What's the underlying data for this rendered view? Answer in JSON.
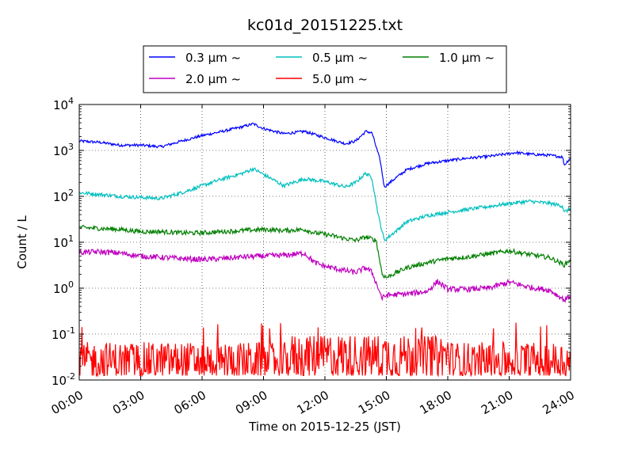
{
  "chart_data": {
    "type": "line",
    "title": "kc01d_20151225.txt",
    "xlabel": "Time on 2015-12-25 (JST)",
    "ylabel": "Count / L",
    "x_range_hours": [
      0,
      24
    ],
    "xticks": [
      {
        "hour": 0,
        "label": "00:00"
      },
      {
        "hour": 3,
        "label": "03:00"
      },
      {
        "hour": 6,
        "label": "06:00"
      },
      {
        "hour": 9,
        "label": "09:00"
      },
      {
        "hour": 12,
        "label": "12:00"
      },
      {
        "hour": 15,
        "label": "15:00"
      },
      {
        "hour": 18,
        "label": "18:00"
      },
      {
        "hour": 21,
        "label": "21:00"
      },
      {
        "hour": 24,
        "label": "24:00"
      }
    ],
    "yscale": "log",
    "ylim": [
      0.01,
      10000
    ],
    "yticks": [
      {
        "value": 0.01,
        "base": "10",
        "exp": "-2"
      },
      {
        "value": 0.1,
        "base": "10",
        "exp": "-1"
      },
      {
        "value": 1,
        "base": "10",
        "exp": "0"
      },
      {
        "value": 10,
        "base": "10",
        "exp": "1"
      },
      {
        "value": 100,
        "base": "10",
        "exp": "2"
      },
      {
        "value": 1000,
        "base": "10",
        "exp": "3"
      },
      {
        "value": 10000,
        "base": "10",
        "exp": "4"
      }
    ],
    "grid": true,
    "legend_position": "top-center, above plot",
    "series": [
      {
        "name": "0.3 μm ~",
        "color": "#0000ff",
        "noise": 0.03,
        "points": [
          [
            0,
            1600
          ],
          [
            1,
            1500
          ],
          [
            2,
            1300
          ],
          [
            3,
            1300
          ],
          [
            4,
            1200
          ],
          [
            5,
            1600
          ],
          [
            6,
            2100
          ],
          [
            7,
            2600
          ],
          [
            8,
            3300
          ],
          [
            8.5,
            3800
          ],
          [
            9,
            3000
          ],
          [
            10,
            2300
          ],
          [
            11,
            2600
          ],
          [
            12,
            1900
          ],
          [
            13,
            1400
          ],
          [
            13.5,
            1600
          ],
          [
            14,
            2600
          ],
          [
            14.3,
            2400
          ],
          [
            14.7,
            600
          ],
          [
            14.9,
            160
          ],
          [
            15.5,
            260
          ],
          [
            16,
            380
          ],
          [
            17,
            520
          ],
          [
            18,
            600
          ],
          [
            19,
            680
          ],
          [
            20,
            740
          ],
          [
            21,
            850
          ],
          [
            21.3,
            900
          ],
          [
            22,
            830
          ],
          [
            23,
            780
          ],
          [
            23.6,
            720
          ],
          [
            23.7,
            480
          ],
          [
            24,
            700
          ]
        ]
      },
      {
        "name": "0.5 μm ~",
        "color": "#00bfbf",
        "noise": 0.04,
        "points": [
          [
            0,
            120
          ],
          [
            1,
            110
          ],
          [
            2,
            100
          ],
          [
            3,
            95
          ],
          [
            4,
            90
          ],
          [
            5,
            120
          ],
          [
            6,
            170
          ],
          [
            7,
            240
          ],
          [
            8,
            320
          ],
          [
            8.5,
            400
          ],
          [
            9,
            300
          ],
          [
            10,
            170
          ],
          [
            11,
            240
          ],
          [
            12,
            210
          ],
          [
            13,
            160
          ],
          [
            13.5,
            200
          ],
          [
            14,
            320
          ],
          [
            14.3,
            250
          ],
          [
            14.6,
            40
          ],
          [
            14.9,
            11
          ],
          [
            15.5,
            18
          ],
          [
            16,
            28
          ],
          [
            17,
            38
          ],
          [
            18,
            45
          ],
          [
            19,
            52
          ],
          [
            20,
            60
          ],
          [
            21,
            70
          ],
          [
            22,
            78
          ],
          [
            23,
            70
          ],
          [
            23.6,
            62
          ],
          [
            23.7,
            45
          ],
          [
            24,
            55
          ]
        ]
      },
      {
        "name": "1.0 μm ~",
        "color": "#007f00",
        "noise": 0.05,
        "points": [
          [
            0,
            21
          ],
          [
            1,
            20
          ],
          [
            2,
            19
          ],
          [
            3,
            17
          ],
          [
            4,
            17
          ],
          [
            5,
            16
          ],
          [
            6,
            16
          ],
          [
            7,
            17
          ],
          [
            8,
            18
          ],
          [
            9,
            19
          ],
          [
            10,
            18
          ],
          [
            11,
            19
          ],
          [
            11.5,
            16
          ],
          [
            12,
            15
          ],
          [
            13,
            12
          ],
          [
            13.5,
            11
          ],
          [
            14,
            13
          ],
          [
            14.5,
            11
          ],
          [
            14.8,
            2
          ],
          [
            15,
            1.7
          ],
          [
            15.5,
            2.2
          ],
          [
            16,
            2.8
          ],
          [
            17,
            3.6
          ],
          [
            18,
            4.4
          ],
          [
            19,
            4.8
          ],
          [
            20,
            5.6
          ],
          [
            21,
            6.5
          ],
          [
            22,
            5.4
          ],
          [
            23,
            4.6
          ],
          [
            23.7,
            3.2
          ],
          [
            24,
            4.2
          ]
        ]
      },
      {
        "name": "2.0 μm ~",
        "color": "#bf00bf",
        "noise": 0.06,
        "points": [
          [
            0,
            6
          ],
          [
            1,
            6.2
          ],
          [
            2,
            5.8
          ],
          [
            3,
            5
          ],
          [
            4,
            4.7
          ],
          [
            5,
            4.4
          ],
          [
            6,
            4.2
          ],
          [
            7,
            4.4
          ],
          [
            8,
            4.8
          ],
          [
            9,
            5
          ],
          [
            10,
            5.2
          ],
          [
            11,
            5.8
          ],
          [
            11.5,
            3.6
          ],
          [
            12,
            3
          ],
          [
            13,
            2.4
          ],
          [
            13.5,
            2.2
          ],
          [
            14,
            2.8
          ],
          [
            14.3,
            2.2
          ],
          [
            14.8,
            0.6
          ],
          [
            15,
            0.7
          ],
          [
            16,
            0.75
          ],
          [
            17,
            0.85
          ],
          [
            17.5,
            1.4
          ],
          [
            18,
            0.95
          ],
          [
            19,
            0.95
          ],
          [
            20,
            1.0
          ],
          [
            21,
            1.35
          ],
          [
            22,
            1.05
          ],
          [
            23,
            0.9
          ],
          [
            23.7,
            0.55
          ],
          [
            24,
            0.7
          ]
        ]
      },
      {
        "name": "5.0 μm ~",
        "color": "#ff0000",
        "noise": 0,
        "points": [
          [
            0,
            0.03
          ],
          [
            24,
            0.03
          ]
        ]
      }
    ]
  }
}
